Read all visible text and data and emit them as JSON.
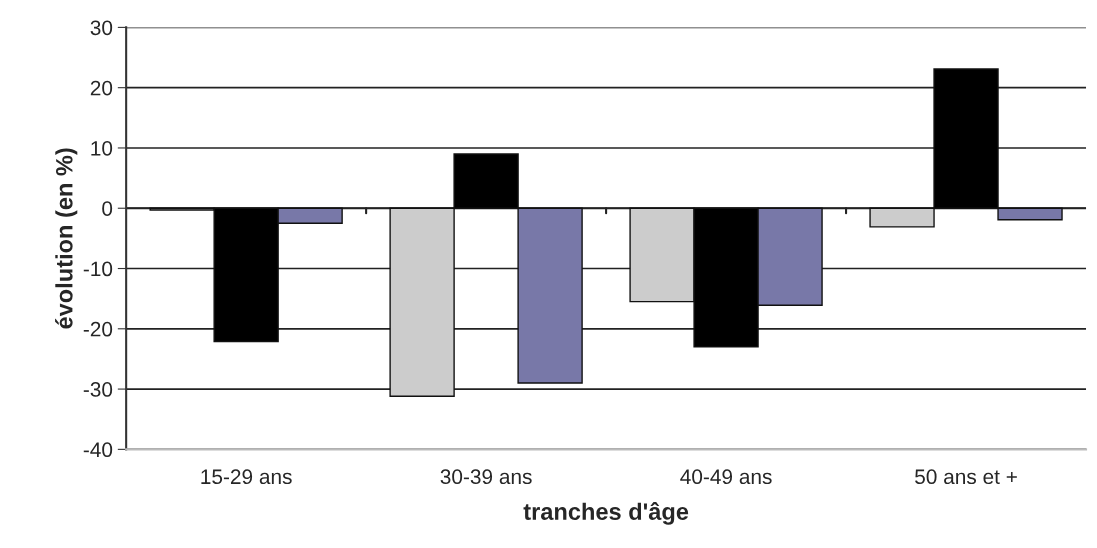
{
  "chart_data": {
    "type": "bar",
    "xlabel": "tranches d'âge",
    "ylabel": "évolution (en %)",
    "categories": [
      "15-29 ans",
      "30-39 ans",
      "40-49 ans",
      "50 ans et +"
    ],
    "series": [
      {
        "color": "#cccccc",
        "values": [
          -0.3,
          -31.2,
          -15.5,
          -3.1
        ]
      },
      {
        "color": "#000000",
        "values": [
          -22.1,
          9.0,
          -23.0,
          23.1
        ]
      },
      {
        "color": "#7878a8",
        "values": [
          -2.5,
          -29.0,
          -16.1,
          -1.9
        ]
      }
    ],
    "ylim": [
      -40,
      30
    ],
    "yticks": [
      -40,
      -30,
      -20,
      -10,
      0,
      10,
      20,
      30
    ],
    "grid": "y"
  }
}
